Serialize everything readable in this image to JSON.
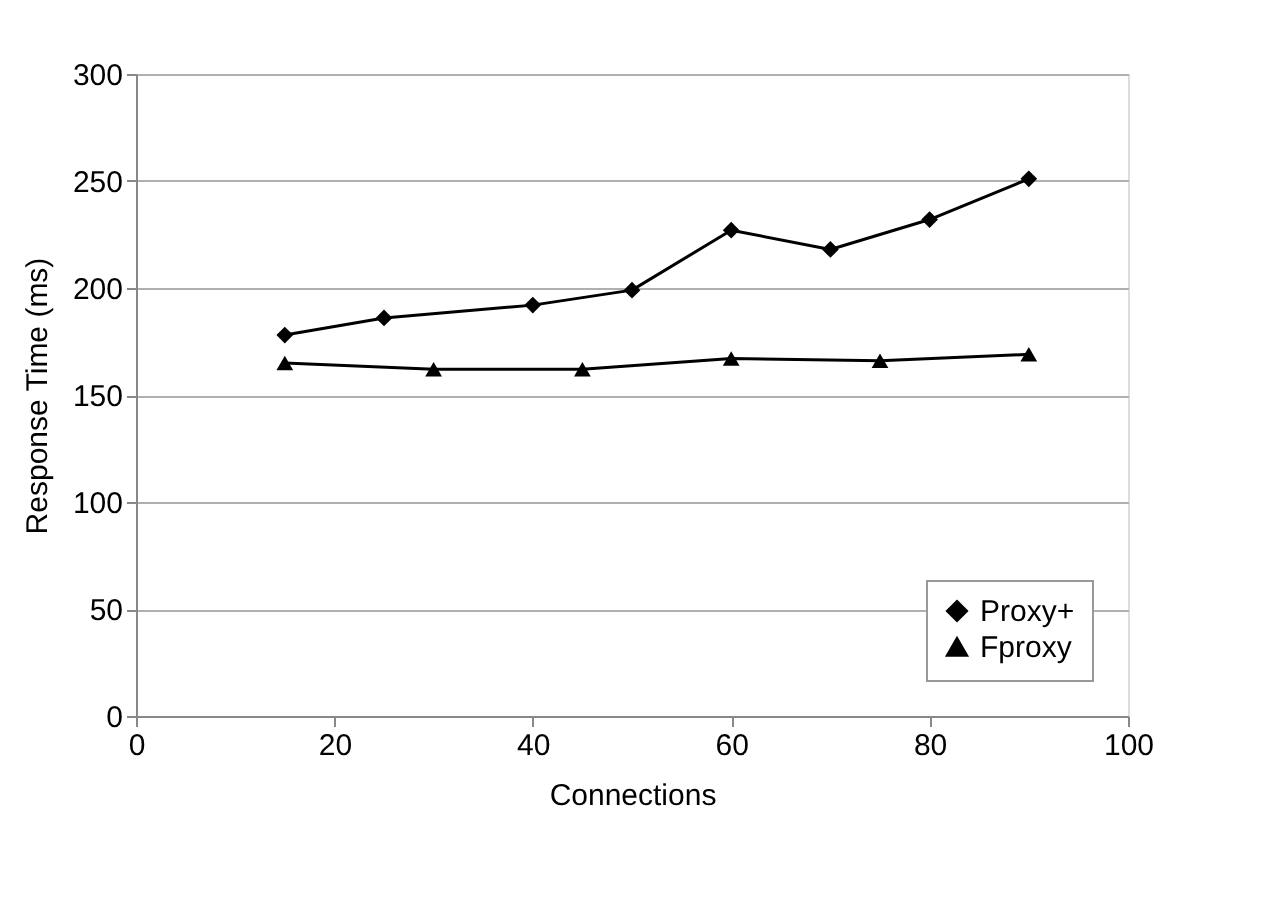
{
  "chart_data": {
    "type": "line",
    "xlabel": "Connections",
    "ylabel": "Response Time (ms)",
    "xlim": [
      0,
      100
    ],
    "xticks": [
      0,
      20,
      40,
      60,
      80,
      100
    ],
    "ylim": [
      0,
      300
    ],
    "yticks": [
      0,
      50,
      100,
      150,
      200,
      250,
      300
    ],
    "grid": "y",
    "legend": "bottom right",
    "line_style": "solid",
    "series": [
      {
        "name": "Proxy+",
        "color": "#000000",
        "marker": "diamond",
        "x": [
          15,
          25,
          40,
          50,
          60,
          70,
          80,
          90
        ],
        "values": [
          178,
          186,
          192,
          199,
          227,
          218,
          232,
          251
        ]
      },
      {
        "name": "Fproxy",
        "color": "#000000",
        "marker": "triangle",
        "x": [
          15,
          30,
          45,
          60,
          75,
          90
        ],
        "values": [
          165,
          162,
          162,
          167,
          166,
          169
        ]
      }
    ]
  }
}
